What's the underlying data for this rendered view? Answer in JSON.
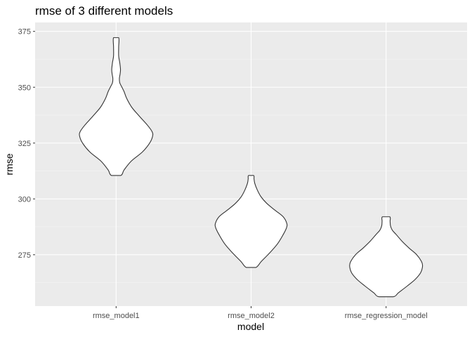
{
  "chart_data": {
    "type": "violin",
    "title": "rmse of 3 different models",
    "xlabel": "model",
    "ylabel": "rmse",
    "categories": [
      "rmse_model1",
      "rmse_model2",
      "rmse_regression_model"
    ],
    "yticks": [
      275,
      300,
      325,
      350,
      375
    ],
    "ylim": [
      252,
      379
    ],
    "grid": true,
    "background": "#ebebeb",
    "grid_color": "#ffffff",
    "fill_color": "#ffffff",
    "outline_color": "#333333",
    "series": [
      {
        "category": "rmse_model1",
        "min": 310.5,
        "max": 372.2,
        "profile": [
          [
            310.5,
            0.13
          ],
          [
            313,
            0.22
          ],
          [
            317,
            0.42
          ],
          [
            321,
            0.72
          ],
          [
            325,
            0.92
          ],
          [
            328,
            1.0
          ],
          [
            330,
            0.99
          ],
          [
            333,
            0.86
          ],
          [
            337,
            0.64
          ],
          [
            341,
            0.43
          ],
          [
            345,
            0.29
          ],
          [
            348,
            0.22
          ],
          [
            350,
            0.16
          ],
          [
            352,
            0.1
          ],
          [
            354,
            0.09
          ],
          [
            356,
            0.11
          ],
          [
            358,
            0.12
          ],
          [
            361,
            0.1
          ],
          [
            364,
            0.07
          ],
          [
            368,
            0.07
          ],
          [
            372.2,
            0.07
          ]
        ]
      },
      {
        "category": "rmse_model2",
        "min": 269.3,
        "max": 310.5,
        "profile": [
          [
            269.3,
            0.13
          ],
          [
            272,
            0.28
          ],
          [
            276,
            0.52
          ],
          [
            280,
            0.73
          ],
          [
            284,
            0.88
          ],
          [
            287,
            0.97
          ],
          [
            289,
            0.98
          ],
          [
            292,
            0.88
          ],
          [
            295,
            0.65
          ],
          [
            298,
            0.43
          ],
          [
            301,
            0.27
          ],
          [
            304,
            0.17
          ],
          [
            307,
            0.1
          ],
          [
            309,
            0.08
          ],
          [
            310.5,
            0.07
          ]
        ]
      },
      {
        "category": "rmse_regression_model",
        "min": 256.2,
        "max": 292.0,
        "profile": [
          [
            256.2,
            0.2
          ],
          [
            258,
            0.34
          ],
          [
            261,
            0.58
          ],
          [
            264,
            0.8
          ],
          [
            267,
            0.95
          ],
          [
            270,
            1.0
          ],
          [
            272,
            0.97
          ],
          [
            275,
            0.84
          ],
          [
            278,
            0.63
          ],
          [
            281,
            0.44
          ],
          [
            284,
            0.28
          ],
          [
            286,
            0.17
          ],
          [
            288,
            0.12
          ],
          [
            290,
            0.11
          ],
          [
            292.0,
            0.1
          ]
        ]
      }
    ]
  }
}
